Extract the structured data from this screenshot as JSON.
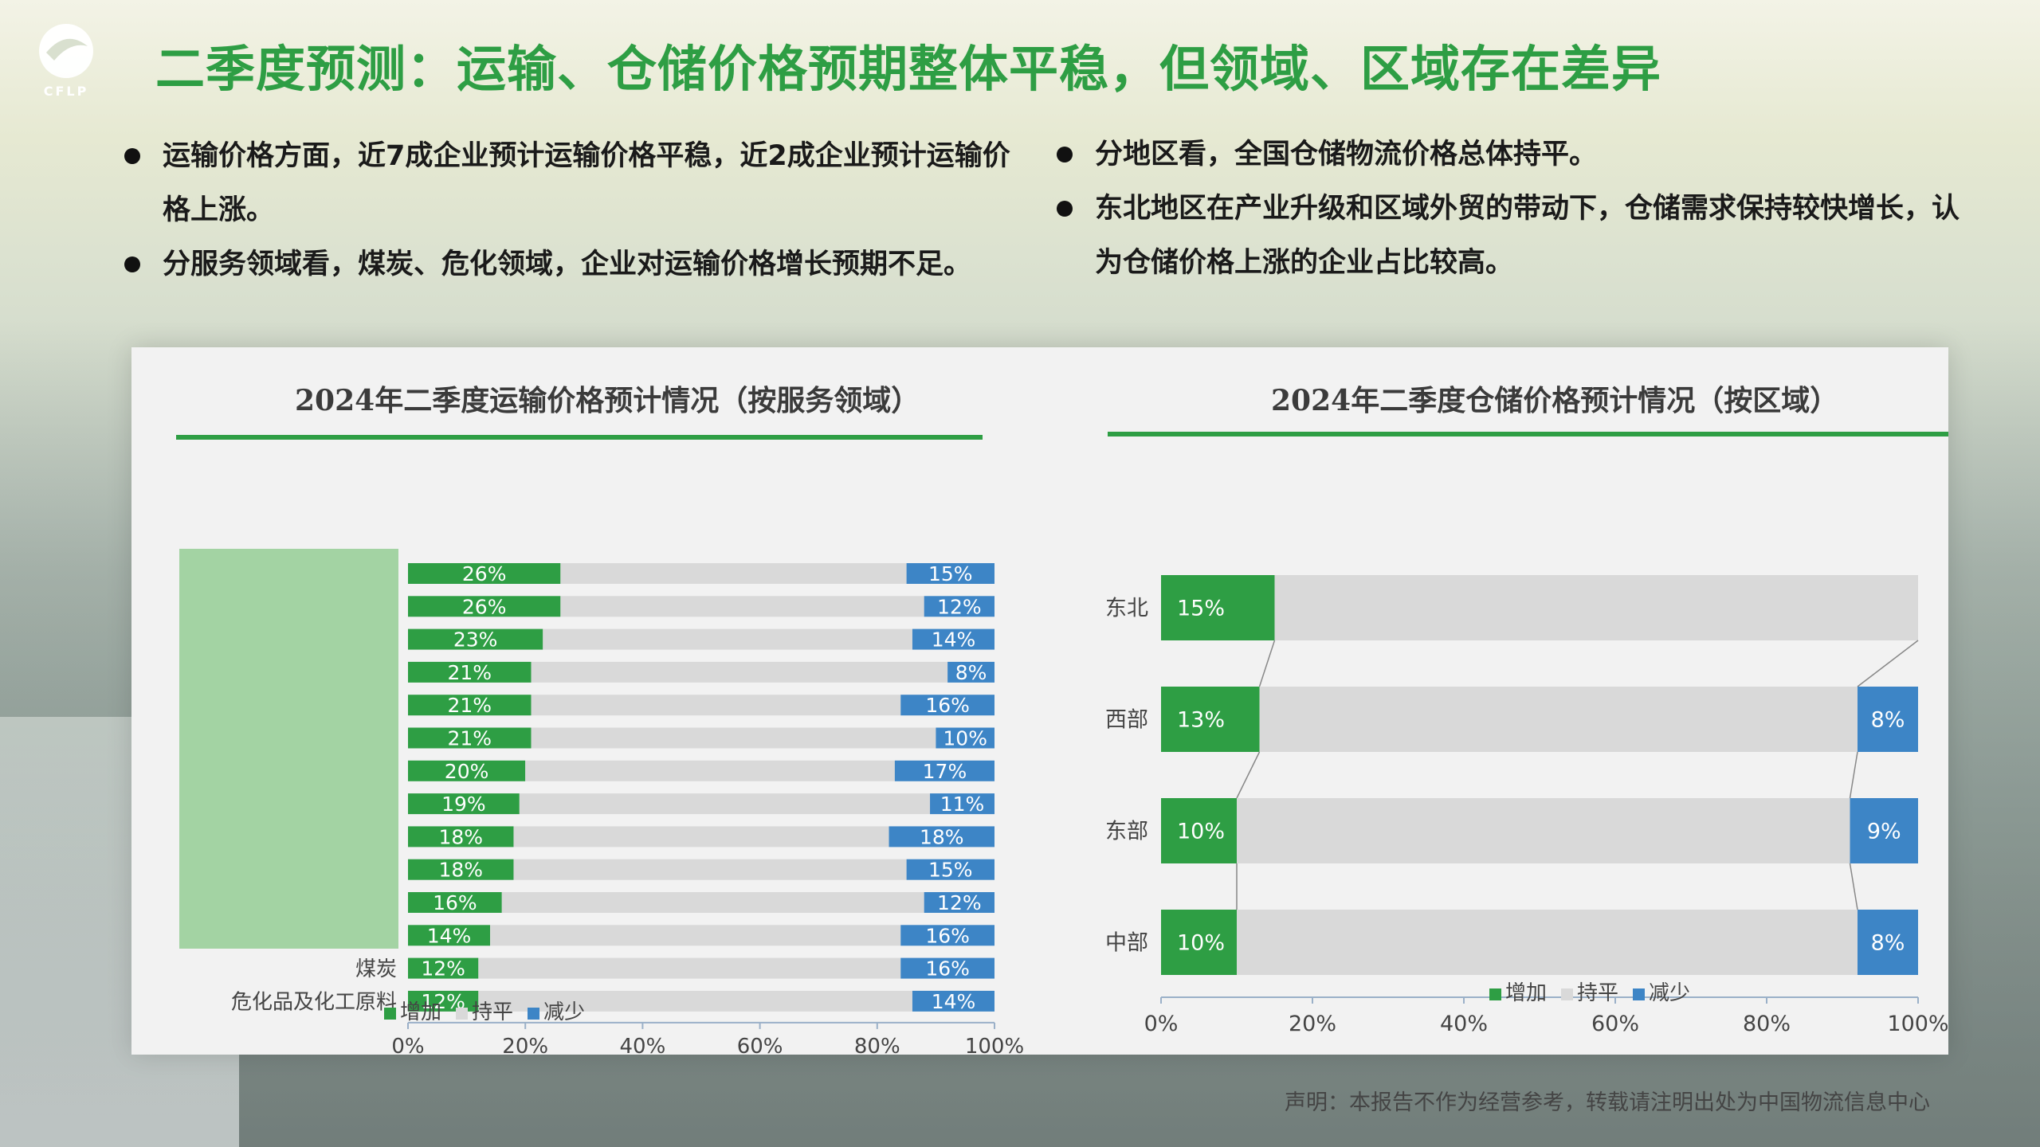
{
  "header": {
    "logo_text": "CFLP",
    "title": "二季度预测：运输、仓储价格预期整体平稳，但领域、区域存在差异"
  },
  "bullets_left": [
    "运输价格方面，近7成企业预计运输价格平稳，近2成企业预计运输价格上涨。",
    "分服务领域看，煤炭、危化领域，企业对运输价格增长预期不足。"
  ],
  "bullets_right": [
    "分地区看，全国仓储物流价格总体持平。",
    "东北地区在产业升级和区域外贸的带动下，仓储需求保持较快增长，认为仓储价格上涨的企业占比较高。"
  ],
  "colors": {
    "increase": "#2e9e44",
    "flat": "#d9d9d9",
    "decrease": "#3d85c6",
    "title_green": "#2e9e44"
  },
  "chart_data": [
    {
      "type": "bar",
      "stacked": "percent",
      "orientation": "horizontal",
      "title": "2024年二季度运输价格预计情况（按服务领域）",
      "categories": [
        "",
        "",
        "",
        "",
        "",
        "",
        "",
        "",
        "",
        "",
        "",
        "",
        "煤炭",
        "危化品及化工原料"
      ],
      "series": [
        {
          "name": "增加",
          "values": [
            26,
            26,
            23,
            21,
            21,
            21,
            20,
            19,
            18,
            18,
            16,
            14,
            12,
            12
          ]
        },
        {
          "name": "持平",
          "values": [
            59,
            62,
            63,
            71,
            63,
            69,
            63,
            70,
            64,
            67,
            72,
            70,
            72,
            74
          ]
        },
        {
          "name": "减少",
          "values": [
            15,
            12,
            14,
            8,
            16,
            10,
            17,
            11,
            18,
            15,
            12,
            16,
            16,
            14
          ]
        }
      ],
      "x_ticks": [
        "0%",
        "20%",
        "40%",
        "60%",
        "80%",
        "100%"
      ],
      "xlim": [
        0,
        100
      ],
      "legend": [
        "增加",
        "持平",
        "减少"
      ],
      "legend_position": "bottom"
    },
    {
      "type": "bar",
      "stacked": "percent",
      "orientation": "horizontal",
      "title": "2024年二季度仓储价格预计情况（按区域）",
      "categories": [
        "东北",
        "西部",
        "东部",
        "中部"
      ],
      "series": [
        {
          "name": "增加",
          "values": [
            15,
            13,
            10,
            10
          ]
        },
        {
          "name": "持平",
          "values": [
            85,
            79,
            81,
            82
          ]
        },
        {
          "name": "减少",
          "values": [
            0,
            8,
            9,
            8
          ]
        }
      ],
      "data_labels": {
        "增加": [
          "15%",
          "13%",
          "10%",
          "10%"
        ],
        "减少": [
          "",
          "8%",
          "9%",
          "8%"
        ]
      },
      "x_ticks": [
        "0%",
        "20%",
        "40%",
        "60%",
        "80%",
        "100%"
      ],
      "xlim": [
        0,
        100
      ],
      "legend": [
        "增加",
        "持平",
        "减少"
      ],
      "legend_position": "bottom"
    }
  ],
  "footer": "声明：本报告不作为经营参考，转载请注明出处为中国物流信息中心"
}
